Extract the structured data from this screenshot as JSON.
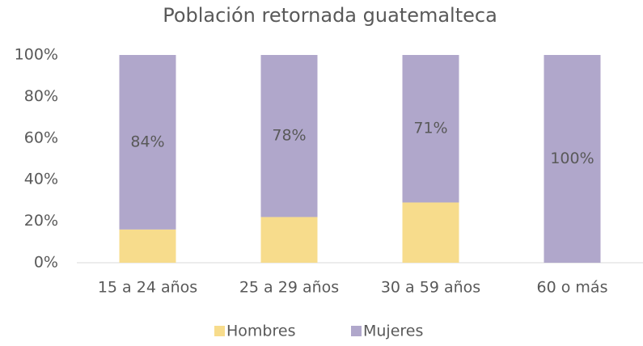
{
  "chart_data": {
    "type": "stacked_bar",
    "title": "Población retornada guatemalteca",
    "categories": [
      "15 a 24 años",
      "25 a 29 años",
      "30 a 59 años",
      "60 o más"
    ],
    "series": [
      {
        "name": "Hombres",
        "color": "#f7dc8c",
        "values": [
          16,
          22,
          29,
          0
        ]
      },
      {
        "name": "Mujeres",
        "color": "#b0a7cb",
        "values": [
          84,
          78,
          71,
          100
        ],
        "value_labels": [
          "84%",
          "78%",
          "71%",
          "100%"
        ]
      }
    ],
    "ylim": [
      0,
      100
    ],
    "yticks": [
      {
        "value": 0,
        "label": "0%"
      },
      {
        "value": 20,
        "label": "20%"
      },
      {
        "value": 40,
        "label": "40%"
      },
      {
        "value": 60,
        "label": "60%"
      },
      {
        "value": 80,
        "label": "80%"
      },
      {
        "value": 100,
        "label": "100%"
      }
    ],
    "grid": false,
    "legend": "bottom"
  }
}
